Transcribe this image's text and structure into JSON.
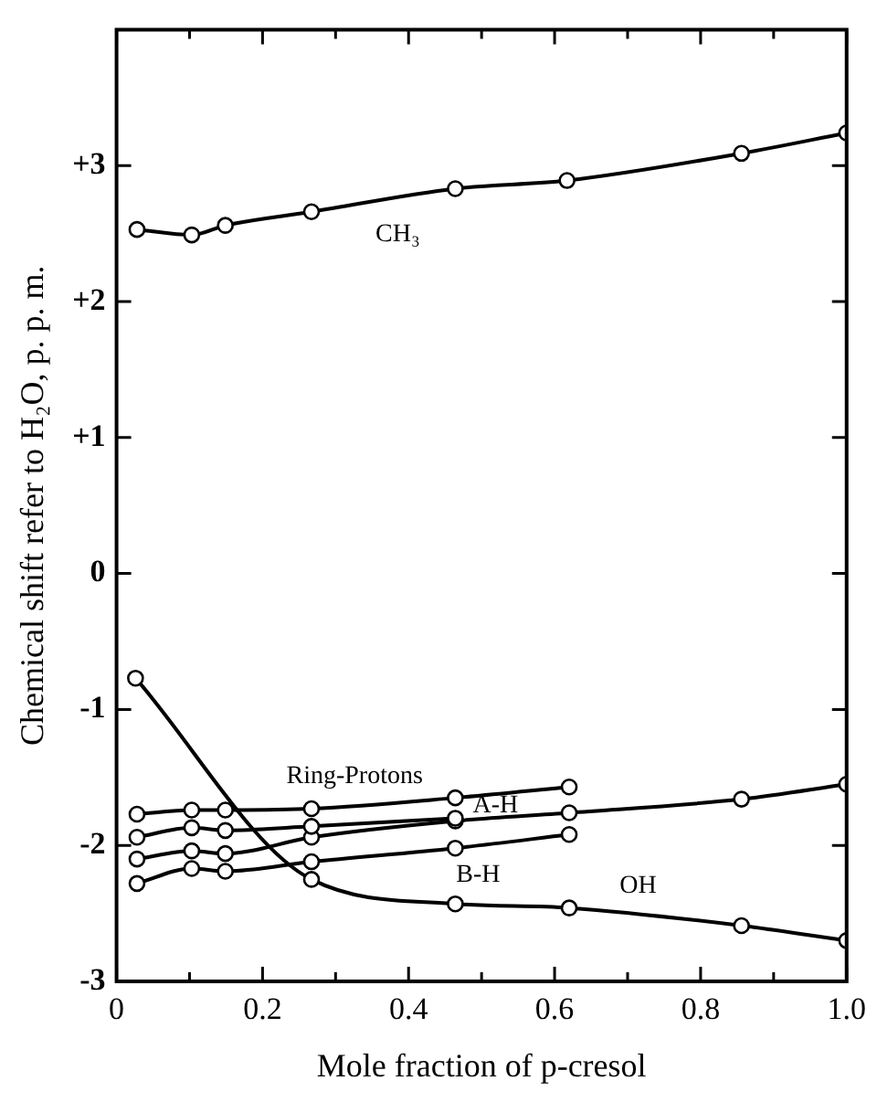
{
  "chart_data": {
    "type": "line",
    "xlabel": "Mole fraction of p-cresol",
    "ylabel": "Chemical shift refer to H₂O, p. p. m.",
    "xlim": [
      0,
      1
    ],
    "ylim": [
      -3,
      4
    ],
    "xticks": [
      0,
      {
        "value": 0.1,
        "label": null
      },
      {
        "value": 0.2,
        "label": "0.2"
      },
      {
        "value": 0.3,
        "label": null
      },
      {
        "value": 0.4,
        "label": "0.4"
      },
      {
        "value": 0.5,
        "label": null
      },
      {
        "value": 0.6,
        "label": "0.6"
      },
      {
        "value": 0.7,
        "label": null
      },
      {
        "value": 0.8,
        "label": "0.8"
      },
      {
        "value": 0.9,
        "label": null
      },
      {
        "value": 1,
        "label": "1.0"
      }
    ],
    "yticks": [
      -3,
      -2,
      -1,
      0,
      {
        "value": 1,
        "label": "+1"
      },
      {
        "value": 2,
        "label": "+2"
      },
      {
        "value": 3,
        "label": "+3"
      }
    ],
    "grid": false,
    "legend": false,
    "marker": "circle",
    "line_style": "solid",
    "series": [
      {
        "name": "CH₃",
        "color": "#000000",
        "x": [
          0.028,
          0.103,
          0.149,
          0.267,
          0.464,
          0.617,
          0.856,
          1.0
        ],
        "values": [
          2.53,
          2.49,
          2.56,
          2.66,
          2.83,
          2.89,
          3.09,
          3.24
        ]
      },
      {
        "name": "OH",
        "color": "#000000",
        "x": [
          0.026,
          0.267,
          0.464,
          0.62,
          0.856,
          1.0
        ],
        "values": [
          -0.77,
          -2.25,
          -2.43,
          -2.46,
          -2.59,
          -2.7
        ]
      },
      {
        "name": "Ring-Protons",
        "color": "#000000",
        "x": [
          0.028,
          0.103,
          0.149,
          0.267,
          0.464,
          0.62
        ],
        "values": [
          -1.77,
          -1.74,
          -1.74,
          -1.73,
          -1.65,
          -1.57
        ]
      },
      {
        "name": "A-H",
        "color": "#000000",
        "x": [
          0.028,
          0.103,
          0.149,
          0.267,
          0.464
        ],
        "values": [
          -1.94,
          -1.87,
          -1.89,
          -1.86,
          -1.8
        ]
      },
      {
        "color": "#000000",
        "x": [
          0.028,
          0.103,
          0.149,
          0.267,
          0.464,
          0.62,
          0.856,
          1.0
        ],
        "values": [
          -2.1,
          -2.04,
          -2.06,
          -1.94,
          -1.82,
          -1.76,
          -1.66,
          -1.55
        ]
      },
      {
        "name": "B-H",
        "color": "#000000",
        "x": [
          0.028,
          0.103,
          0.149,
          0.267,
          0.464,
          0.62
        ],
        "values": [
          -2.28,
          -2.17,
          -2.19,
          -2.12,
          -2.02,
          -1.92
        ]
      }
    ]
  }
}
